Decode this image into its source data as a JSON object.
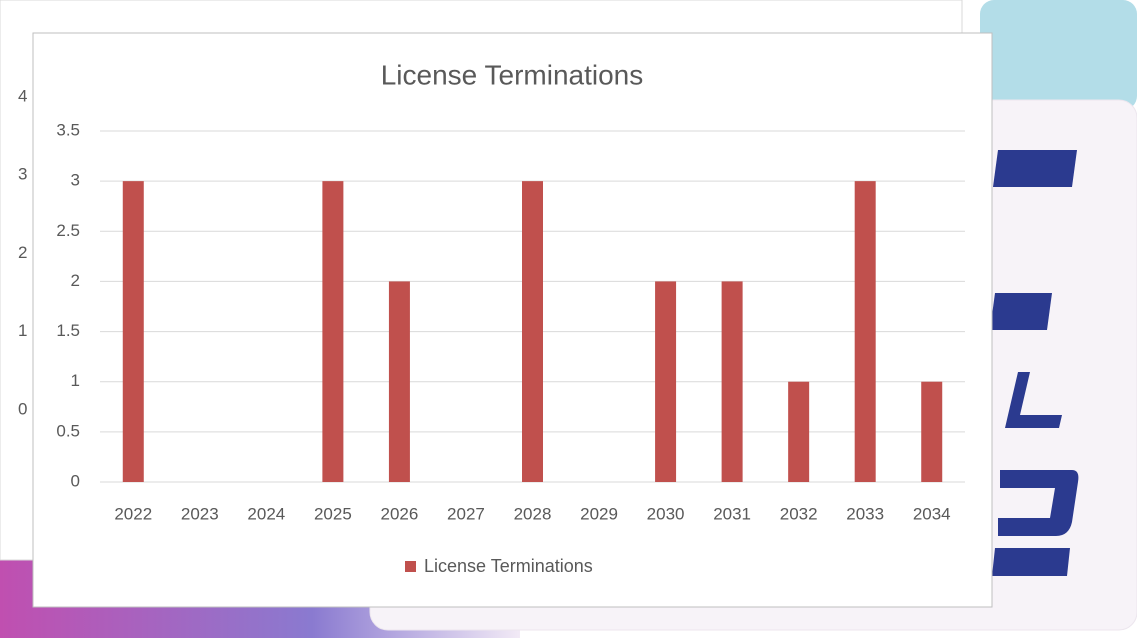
{
  "chart_data": [
    {
      "type": "bar",
      "title": "License Terminations",
      "categories": [
        "2022",
        "2023",
        "2024",
        "2025",
        "2026",
        "2027",
        "2028",
        "2029",
        "2030",
        "2031",
        "2032",
        "2033",
        "2034"
      ],
      "series": [
        {
          "name": "License Terminations",
          "color": "#c0504d",
          "values": [
            3,
            0,
            0,
            3,
            2,
            0,
            3,
            0,
            2,
            2,
            1,
            3,
            1
          ]
        }
      ],
      "ylim": [
        0,
        3.5
      ],
      "yticks": [
        0,
        0.5,
        1,
        1.5,
        2,
        2.5,
        3,
        3.5
      ],
      "grid": true,
      "legend": "bottom"
    },
    {
      "type": "bar",
      "ylim": [
        0,
        4
      ],
      "yticks": [
        0,
        1,
        2,
        3,
        4
      ]
    }
  ]
}
